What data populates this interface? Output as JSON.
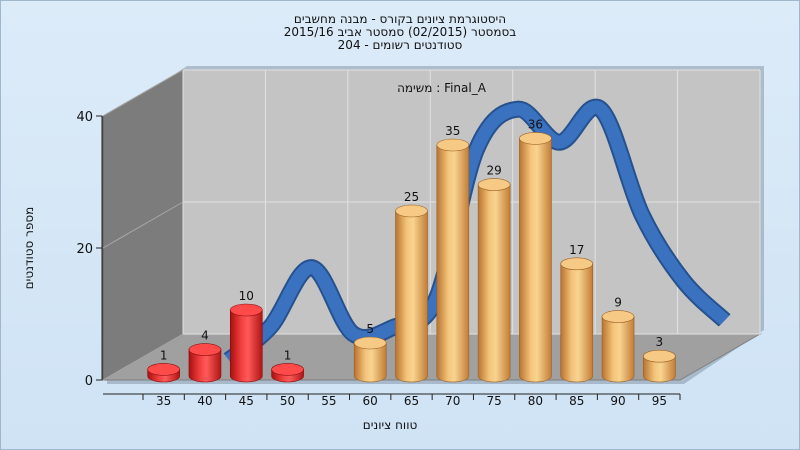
{
  "chart_data": {
    "type": "bar",
    "title_lines": [
      "היסטוגרמת ציונים בקורס - מבנה מחשבים",
      "בסמסטר  (02/2015)  סמסטר אביב 2015/16",
      "סטודנטים רשומים - 204"
    ],
    "subtitle": "משימה : Final_A",
    "xlabel": "טווח ציונים",
    "ylabel": "מספר סטודנטים",
    "categories": [
      "35",
      "40",
      "45",
      "50",
      "55",
      "60",
      "65",
      "70",
      "75",
      "80",
      "85",
      "90",
      "95"
    ],
    "y_ticks": [
      "0",
      "20",
      "40"
    ],
    "ylim": [
      0,
      40
    ],
    "grid": true,
    "bars": [
      {
        "bin": 35,
        "value": 1,
        "label": "1",
        "color": "red"
      },
      {
        "bin": 40,
        "value": 4,
        "label": "4",
        "color": "red"
      },
      {
        "bin": 45,
        "value": 10,
        "label": "10",
        "color": "red"
      },
      {
        "bin": 50,
        "value": 1,
        "label": "1",
        "color": "red"
      },
      {
        "bin": 60,
        "value": 5,
        "label": "5",
        "color": "gold"
      },
      {
        "bin": 65,
        "value": 25,
        "label": "25",
        "color": "gold"
      },
      {
        "bin": 70,
        "value": 35,
        "label": "35",
        "color": "gold"
      },
      {
        "bin": 75,
        "value": 29,
        "label": "29",
        "color": "gold"
      },
      {
        "bin": 80,
        "value": 36,
        "label": "36",
        "color": "gold"
      },
      {
        "bin": 85,
        "value": 17,
        "label": "17",
        "color": "gold"
      },
      {
        "bin": 90,
        "value": 9,
        "label": "9",
        "color": "gold"
      },
      {
        "bin": 95,
        "value": 3,
        "label": "3",
        "color": "gold"
      }
    ],
    "curve": {
      "x": [
        40,
        45,
        50,
        55,
        60,
        65,
        70,
        75,
        80,
        85,
        90,
        95,
        100
      ],
      "y": [
        0,
        5,
        14,
        4,
        5,
        9,
        32,
        38,
        33,
        38,
        22,
        12,
        6
      ]
    },
    "colors": {
      "red_bar": "#e02020",
      "gold_bar": "#e8a850",
      "curve": "#3a72c0",
      "plot_back": "#c4c4c4",
      "left_wall": "#7c7c7c",
      "floor": "#a0a0a0"
    }
  }
}
